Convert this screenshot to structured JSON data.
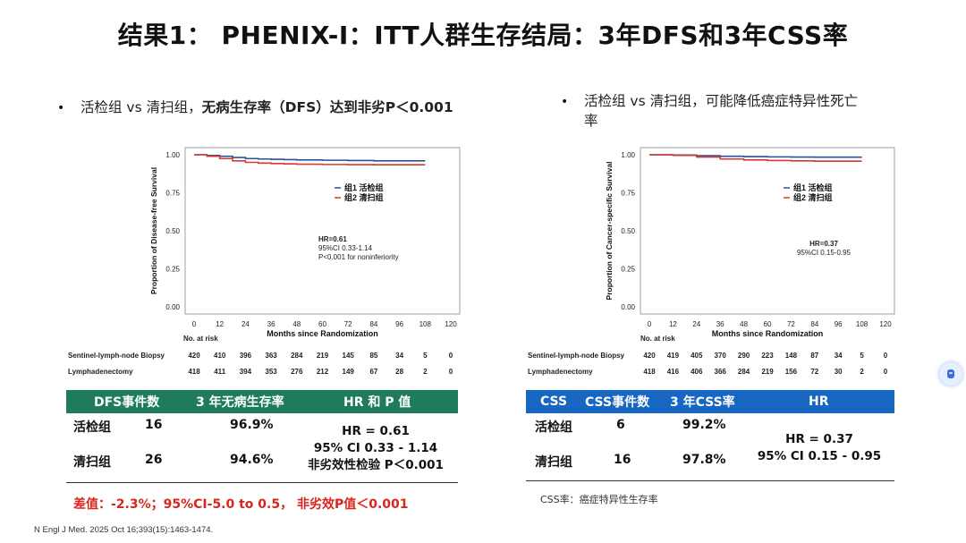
{
  "slide": {
    "title": "结果1： PHENIX-I：ITT人群生存结局：3年DFS和3年CSS率",
    "citation": "N Engl J Med. 2025 Oct 16;393(15):1463-1474."
  },
  "left": {
    "bullet_prefix": "活检组 vs 清扫组，",
    "bullet_bold": "无病生存率（DFS）达到非劣P＜0.001",
    "table": {
      "header": [
        "DFS事件数",
        "3 年无病生存率",
        "HR 和 P 值"
      ],
      "rows": [
        {
          "group": "活检组",
          "events": "16",
          "rate": "96.9%"
        },
        {
          "group": "清扫组",
          "events": "26",
          "rate": "94.6%"
        }
      ],
      "hr_lines": [
        "HR = 0.61",
        "95% CI 0.33 - 1.14",
        "非劣效性检验 P＜0.001"
      ],
      "header_color": "#1e7c5c"
    },
    "difference_line": "差值：-2.3%；95%CI-5.0 to 0.5， 非劣效P值＜0.001"
  },
  "right": {
    "bullet_line1": "活检组 vs 清扫组，可能降低癌症特异性死亡",
    "bullet_line2": "率",
    "table": {
      "header": [
        "CSS",
        "CSS事件数",
        "3 年CSS率",
        "HR"
      ],
      "rows": [
        {
          "group": "活检组",
          "events": "6",
          "rate": "99.2%"
        },
        {
          "group": "清扫组",
          "events": "16",
          "rate": "97.8%"
        }
      ],
      "hr_lines": [
        "HR = 0.37",
        "95% CI 0.15 - 0.95"
      ],
      "header_color": "#1666c2"
    },
    "footnote": "CSS率：癌症特异性生存率"
  },
  "chart_data": [
    {
      "type": "line",
      "title": "",
      "xlabel": "Months since Randomization",
      "ylabel": "Proportion of Disease-free Survival",
      "xlim": [
        0,
        120
      ],
      "ylim": [
        0.0,
        1.0
      ],
      "x_ticks": [
        "0",
        "12",
        "24",
        "36",
        "48",
        "60",
        "72",
        "84",
        "96",
        "108",
        "120"
      ],
      "y_ticks": [
        "0.00",
        "0.25",
        "0.50",
        "0.75",
        "1.00"
      ],
      "legend": [
        "组1 活检组",
        "组2 清扫组"
      ],
      "annotation": [
        "HR=0.61",
        "95%CI 0.33-1.14",
        "P<0.001 for noninferiority"
      ],
      "colors": {
        "biopsy": "#2a4f9e",
        "dissection": "#d63b2f"
      },
      "series": [
        {
          "name": "组1 活检组",
          "x": [
            0,
            6,
            12,
            18,
            24,
            30,
            36,
            42,
            48,
            60,
            72,
            84,
            96,
            108
          ],
          "values": [
            1.0,
            0.995,
            0.99,
            0.982,
            0.975,
            0.972,
            0.97,
            0.968,
            0.966,
            0.964,
            0.962,
            0.96,
            0.96,
            0.96
          ]
        },
        {
          "name": "组2 清扫组",
          "x": [
            0,
            6,
            12,
            18,
            24,
            30,
            36,
            42,
            48,
            60,
            72,
            84,
            96,
            108
          ],
          "values": [
            1.0,
            0.99,
            0.975,
            0.96,
            0.95,
            0.945,
            0.942,
            0.94,
            0.938,
            0.936,
            0.935,
            0.934,
            0.934,
            0.934
          ]
        }
      ],
      "risk_table": {
        "title": "No. at risk",
        "rows": [
          {
            "label": "Sentinel-lymph-node Biopsy",
            "values": [
              "420",
              "410",
              "396",
              "363",
              "284",
              "219",
              "145",
              "85",
              "34",
              "5",
              "0"
            ]
          },
          {
            "label": "Lymphadenectomy",
            "values": [
              "418",
              "411",
              "394",
              "353",
              "276",
              "212",
              "149",
              "67",
              "28",
              "2",
              "0"
            ]
          }
        ]
      }
    },
    {
      "type": "line",
      "title": "",
      "xlabel": "Months since Randomization",
      "ylabel": "Proportion of Cancer-specific Survival",
      "xlim": [
        0,
        120
      ],
      "ylim": [
        0.0,
        1.0
      ],
      "x_ticks": [
        "0",
        "12",
        "24",
        "36",
        "48",
        "60",
        "72",
        "84",
        "96",
        "108",
        "120"
      ],
      "y_ticks": [
        "0.00",
        "0.25",
        "0.50",
        "0.75",
        "1.00"
      ],
      "legend": [
        "组1 活检组",
        "组2 清扫组"
      ],
      "annotation": [
        "HR=0.37",
        "95%CI 0.15-0.95"
      ],
      "colors": {
        "biopsy": "#2a4f9e",
        "dissection": "#d63b2f"
      },
      "series": [
        {
          "name": "组1 活检组",
          "x": [
            0,
            12,
            24,
            36,
            48,
            60,
            72,
            84,
            96,
            108
          ],
          "values": [
            1.0,
            0.998,
            0.994,
            0.99,
            0.988,
            0.986,
            0.985,
            0.984,
            0.984,
            0.984
          ]
        },
        {
          "name": "组2 清扫组",
          "x": [
            0,
            12,
            24,
            36,
            48,
            60,
            72,
            84,
            96,
            108
          ],
          "values": [
            1.0,
            0.996,
            0.985,
            0.972,
            0.966,
            0.962,
            0.96,
            0.958,
            0.958,
            0.958
          ]
        }
      ],
      "risk_table": {
        "title": "No. at risk",
        "rows": [
          {
            "label": "Sentinel-lymph-node Biopsy",
            "values": [
              "420",
              "419",
              "405",
              "370",
              "290",
              "223",
              "148",
              "87",
              "34",
              "5",
              "0"
            ]
          },
          {
            "label": "Lymphadenectomy",
            "values": [
              "418",
              "416",
              "406",
              "366",
              "284",
              "219",
              "156",
              "72",
              "30",
              "2",
              "0"
            ]
          }
        ]
      }
    }
  ]
}
